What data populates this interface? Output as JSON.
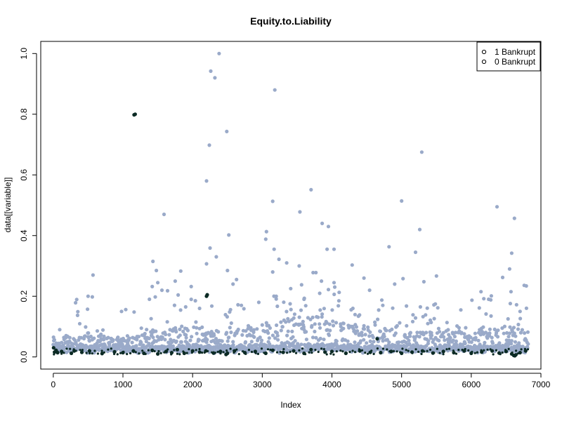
{
  "chart_data": {
    "type": "scatter",
    "title": "Equity.to.Liability",
    "xlabel": "Index",
    "ylabel": "data[[variable]]",
    "xlim": [
      -180,
      7000
    ],
    "ylim": [
      -0.04,
      1.04
    ],
    "xticks": [
      0,
      1000,
      2000,
      3000,
      4000,
      5000,
      6000,
      7000
    ],
    "yticks": [
      0.0,
      0.2,
      0.4,
      0.6,
      0.8,
      1.0
    ],
    "xtick_labels": [
      "0",
      "1000",
      "2000",
      "3000",
      "4000",
      "5000",
      "6000",
      "7000"
    ],
    "ytick_labels": [
      "0.0",
      "0.2",
      "0.4",
      "0.6",
      "0.8",
      "1.0"
    ],
    "grid": false,
    "legend_position": "top-right",
    "legend": [
      {
        "label": "1 Bankrupt",
        "marker": "o"
      },
      {
        "label": "0 Bankrupt",
        "marker": "o"
      }
    ],
    "n_points": 6819,
    "series": [
      {
        "name": "1 Bankrupt",
        "color": "#0b2a24",
        "points": [
          [
            5,
            0.03
          ],
          [
            18,
            0.016
          ],
          [
            40,
            0.022
          ],
          [
            62,
            0.014
          ],
          [
            120,
            0.018
          ],
          [
            260,
            0.012
          ],
          [
            300,
            0.02
          ],
          [
            410,
            0.015
          ],
          [
            520,
            0.02
          ],
          [
            700,
            0.011
          ],
          [
            880,
            0.017
          ],
          [
            1000,
            0.014
          ],
          [
            1150,
            0.02
          ],
          [
            1160,
            0.798
          ],
          [
            1175,
            0.8
          ],
          [
            1300,
            0.012
          ],
          [
            1420,
            0.022
          ],
          [
            1500,
            0.01
          ],
          [
            1620,
            0.018
          ],
          [
            1700,
            0.014
          ],
          [
            1780,
            0.024
          ],
          [
            1880,
            0.012
          ],
          [
            2000,
            0.02
          ],
          [
            2100,
            0.016
          ],
          [
            2190,
            0.02
          ],
          [
            2200,
            0.2
          ],
          [
            2210,
            0.205
          ],
          [
            2300,
            0.013
          ],
          [
            2400,
            0.018
          ],
          [
            2480,
            0.008
          ],
          [
            2500,
            0.012
          ],
          [
            2600,
            0.02
          ],
          [
            2750,
            0.014
          ],
          [
            2900,
            0.018
          ],
          [
            3050,
            0.012
          ],
          [
            3150,
            0.022
          ],
          [
            3300,
            0.015
          ],
          [
            3450,
            0.02
          ],
          [
            3600,
            0.012
          ],
          [
            3700,
            0.024
          ],
          [
            3900,
            0.016
          ],
          [
            4000,
            0.018
          ],
          [
            4200,
            0.012
          ],
          [
            4400,
            0.02
          ],
          [
            4550,
            0.015
          ],
          [
            4650,
            0.06
          ],
          [
            4700,
            0.014
          ],
          [
            4850,
            0.018
          ],
          [
            5000,
            0.012
          ],
          [
            5150,
            0.016
          ],
          [
            5300,
            0.02
          ],
          [
            5450,
            0.013
          ],
          [
            5600,
            0.018
          ],
          [
            5750,
            0.014
          ],
          [
            5900,
            0.02
          ],
          [
            6000,
            0.012
          ],
          [
            6150,
            0.016
          ],
          [
            6300,
            0.02
          ],
          [
            6400,
            0.013
          ],
          [
            6500,
            0.018
          ],
          [
            6580,
            0.01
          ],
          [
            6610,
            0.005
          ],
          [
            6625,
            0.004
          ],
          [
            6640,
            0.007
          ],
          [
            6700,
            0.014
          ],
          [
            6780,
            0.02
          ]
        ]
      },
      {
        "name": "0 Bankrupt",
        "color": "#9aaac9",
        "points": [
          [
            2380,
            1.0
          ],
          [
            2260,
            0.942
          ],
          [
            2320,
            0.92
          ],
          [
            3180,
            0.88
          ],
          [
            5290,
            0.675
          ],
          [
            2490,
            0.743
          ],
          [
            2240,
            0.698
          ],
          [
            2200,
            0.58
          ],
          [
            3700,
            0.551
          ],
          [
            5000,
            0.514
          ],
          [
            3150,
            0.513
          ],
          [
            6370,
            0.495
          ],
          [
            3540,
            0.478
          ],
          [
            1590,
            0.47
          ],
          [
            6620,
            0.457
          ],
          [
            3860,
            0.44
          ],
          [
            3950,
            0.43
          ],
          [
            5260,
            0.42
          ],
          [
            3060,
            0.413
          ],
          [
            2520,
            0.402
          ],
          [
            3050,
            0.388
          ],
          [
            4820,
            0.363
          ],
          [
            2250,
            0.359
          ],
          [
            3170,
            0.355
          ],
          [
            3930,
            0.355
          ],
          [
            4030,
            0.355
          ],
          [
            5200,
            0.345
          ],
          [
            6580,
            0.342
          ],
          [
            2340,
            0.33
          ],
          [
            3240,
            0.322
          ],
          [
            1430,
            0.315
          ],
          [
            3350,
            0.31
          ],
          [
            2200,
            0.307
          ],
          [
            4290,
            0.303
          ],
          [
            3530,
            0.3
          ],
          [
            6550,
            0.29
          ],
          [
            1480,
            0.285
          ],
          [
            2500,
            0.285
          ],
          [
            1830,
            0.283
          ],
          [
            3150,
            0.28
          ],
          [
            3730,
            0.278
          ],
          [
            3770,
            0.278
          ],
          [
            570,
            0.27
          ],
          [
            5500,
            0.267
          ],
          [
            6450,
            0.262
          ],
          [
            4460,
            0.26
          ],
          [
            5020,
            0.258
          ],
          [
            2630,
            0.255
          ],
          [
            1750,
            0.25
          ],
          [
            3850,
            0.25
          ],
          [
            5320,
            0.248
          ],
          [
            1500,
            0.245
          ],
          [
            4030,
            0.245
          ],
          [
            2580,
            0.24
          ],
          [
            6760,
            0.236
          ],
          [
            6790,
            0.234
          ],
          [
            1420,
            0.232
          ],
          [
            1980,
            0.232
          ],
          [
            4900,
            0.24
          ],
          [
            3950,
            0.222
          ],
          [
            1560,
            0.22
          ],
          [
            1640,
            0.218
          ],
          [
            4540,
            0.22
          ],
          [
            6140,
            0.215
          ],
          [
            500,
            0.2
          ],
          [
            560,
            0.198
          ],
          [
            1380,
            0.19
          ],
          [
            6250,
            0.19
          ],
          [
            6570,
            0.215
          ],
          [
            6010,
            0.187
          ],
          [
            6280,
            0.188
          ],
          [
            6180,
            0.192
          ],
          [
            4730,
            0.17
          ],
          [
            5070,
            0.168
          ],
          [
            5270,
            0.165
          ],
          [
            6650,
            0.172
          ],
          [
            6700,
            0.15
          ],
          [
            980,
            0.15
          ],
          [
            1160,
            0.148
          ],
          [
            2950,
            0.18
          ],
          [
            3400,
            0.175
          ],
          [
            4300,
            0.16
          ],
          [
            5850,
            0.155
          ],
          [
            3200,
            0.2
          ],
          [
            3600,
            0.19
          ],
          [
            4100,
            0.185
          ],
          [
            2700,
            0.17
          ],
          [
            1900,
            0.165
          ],
          [
            2100,
            0.16
          ]
        ],
        "band": [
          [
            0,
            0.03,
            0.065
          ],
          [
            500,
            0.03,
            0.08
          ],
          [
            1000,
            0.028,
            0.06
          ],
          [
            1500,
            0.03,
            0.09
          ],
          [
            2000,
            0.03,
            0.1
          ],
          [
            2500,
            0.03,
            0.08
          ],
          [
            3000,
            0.032,
            0.11
          ],
          [
            3500,
            0.032,
            0.13
          ],
          [
            4000,
            0.032,
            0.12
          ],
          [
            4500,
            0.03,
            0.09
          ],
          [
            5000,
            0.03,
            0.085
          ],
          [
            5500,
            0.03,
            0.08
          ],
          [
            6000,
            0.03,
            0.08
          ],
          [
            6500,
            0.03,
            0.1
          ],
          [
            6819,
            0.03,
            0.09
          ]
        ]
      }
    ]
  }
}
